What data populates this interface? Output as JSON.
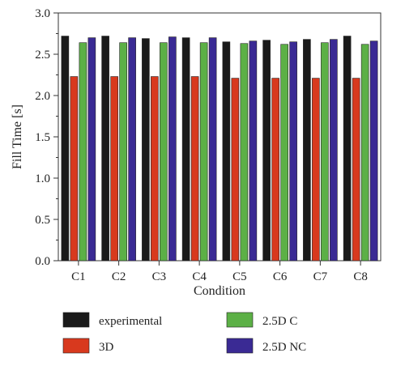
{
  "chart_data": {
    "type": "bar",
    "title": "",
    "xlabel": "Condition",
    "ylabel": "Fill Time [s]",
    "ylim": [
      0,
      3.0
    ],
    "yticks": [
      "0.0",
      "0.5",
      "1.0",
      "1.5",
      "2.0",
      "2.5",
      "3.0"
    ],
    "categories": [
      "C1",
      "C2",
      "C3",
      "C4",
      "C5",
      "C6",
      "C7",
      "C8"
    ],
    "series": [
      {
        "name": "experimental",
        "color": "#1a1a1a",
        "values": [
          2.72,
          2.72,
          2.69,
          2.7,
          2.65,
          2.67,
          2.68,
          2.72
        ]
      },
      {
        "name": "3D",
        "color": "#d8391e",
        "values": [
          2.23,
          2.23,
          2.23,
          2.23,
          2.21,
          2.21,
          2.21,
          2.21
        ]
      },
      {
        "name": "2.5D C",
        "color": "#5cb046",
        "values": [
          2.64,
          2.64,
          2.64,
          2.64,
          2.63,
          2.62,
          2.64,
          2.62
        ]
      },
      {
        "name": "2.5D NC",
        "color": "#3a2a94",
        "values": [
          2.7,
          2.7,
          2.71,
          2.7,
          2.66,
          2.65,
          2.68,
          2.66
        ]
      }
    ],
    "legend_position": "bottom",
    "grid": false
  }
}
